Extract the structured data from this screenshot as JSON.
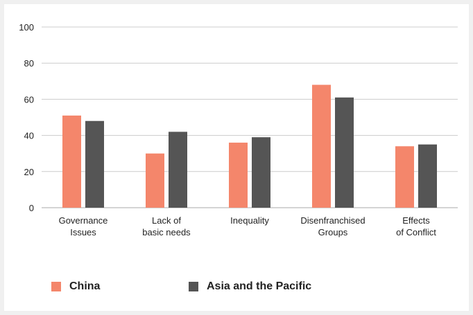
{
  "chart_data": {
    "type": "bar",
    "categories": [
      [
        "Governance",
        "Issues"
      ],
      [
        "Lack of",
        "basic needs"
      ],
      [
        "Inequality"
      ],
      [
        "Disenfranchised",
        "Groups"
      ],
      [
        "Effects",
        "of Conflict"
      ]
    ],
    "series": [
      {
        "name": "China",
        "color": "#f4866b",
        "values": [
          51,
          30,
          36,
          68,
          34
        ]
      },
      {
        "name": "Asia and the Pacific",
        "color": "#555555",
        "values": [
          48,
          42,
          39,
          61,
          35
        ]
      }
    ],
    "yticks": [
      "0",
      "20",
      "40",
      "60",
      "80",
      "100"
    ],
    "ylim": [
      0,
      100
    ],
    "grid": true,
    "legend_position": "bottom-left"
  },
  "legend": {
    "china_label": "China",
    "asia_label": "Asia and the Pacific"
  }
}
